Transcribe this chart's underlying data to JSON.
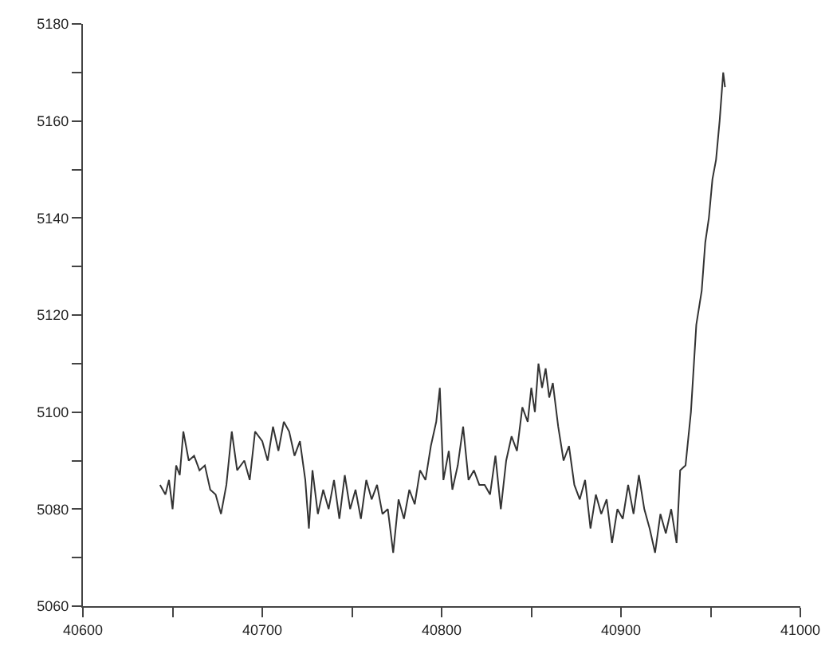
{
  "chart_data": {
    "type": "line",
    "xlim": [
      40600,
      41000
    ],
    "ylim": [
      5060,
      5180
    ],
    "xticks": [
      40600,
      {
        "value": 40650,
        "label": null
      },
      40700,
      {
        "value": 40750,
        "label": null
      },
      40800,
      {
        "value": 40850,
        "label": null
      },
      40900,
      {
        "value": 40950,
        "label": null
      },
      41000
    ],
    "yticks": [
      5060,
      {
        "value": 5070,
        "label": null
      },
      5080,
      {
        "value": 5090,
        "label": null
      },
      5100,
      {
        "value": 5110,
        "label": null
      },
      5120,
      {
        "value": 5130,
        "label": null
      },
      5140,
      {
        "value": 5150,
        "label": null
      },
      5160,
      {
        "value": 5170,
        "label": null
      },
      5180
    ],
    "marker": "none",
    "line_style": "solid",
    "x": [
      40643,
      40646,
      40648,
      40650,
      40652,
      40654,
      40656,
      40659,
      40662,
      40665,
      40668,
      40671,
      40674,
      40677,
      40680,
      40683,
      40686,
      40690,
      40693,
      40696,
      40700,
      40703,
      40706,
      40709,
      40712,
      40715,
      40718,
      40721,
      40724,
      40726,
      40728,
      40731,
      40734,
      40737,
      40740,
      40743,
      40746,
      40749,
      40752,
      40755,
      40758,
      40761,
      40764,
      40767,
      40770,
      40773,
      40776,
      40779,
      40782,
      40785,
      40788,
      40791,
      40794,
      40797,
      40799,
      40801,
      40804,
      40806,
      40809,
      40812,
      40815,
      40818,
      40821,
      40824,
      40827,
      40830,
      40833,
      40836,
      40839,
      40842,
      40845,
      40848,
      40850,
      40852,
      40854,
      40856,
      40858,
      40860,
      40862,
      40865,
      40868,
      40871,
      40874,
      40877,
      40880,
      40883,
      40886,
      40889,
      40892,
      40895,
      40898,
      40901,
      40904,
      40907,
      40910,
      40913,
      40916,
      40919,
      40922,
      40925,
      40928,
      40931,
      40933,
      40936,
      40939,
      40942,
      40945,
      40947,
      40949,
      40951,
      40953,
      40955,
      40957,
      40958
    ],
    "series": [
      {
        "color": "#333333",
        "values": [
          5085,
          5083,
          5086,
          5080,
          5089,
          5087,
          5096,
          5090,
          5091,
          5088,
          5089,
          5084,
          5083,
          5079,
          5085,
          5096,
          5088,
          5090,
          5086,
          5096,
          5094,
          5090,
          5097,
          5092,
          5098,
          5096,
          5091,
          5094,
          5086,
          5076,
          5088,
          5079,
          5084,
          5080,
          5086,
          5078,
          5087,
          5080,
          5084,
          5078,
          5086,
          5082,
          5085,
          5079,
          5080,
          5071,
          5082,
          5078,
          5084,
          5081,
          5088,
          5086,
          5093,
          5098,
          5105,
          5086,
          5092,
          5084,
          5089,
          5097,
          5086,
          5088,
          5085,
          5085,
          5083,
          5091,
          5080,
          5090,
          5095,
          5092,
          5101,
          5098,
          5105,
          5100,
          5110,
          5105,
          5109,
          5103,
          5106,
          5097,
          5090,
          5093,
          5085,
          5082,
          5086,
          5076,
          5083,
          5079,
          5082,
          5073,
          5080,
          5078,
          5085,
          5079,
          5087,
          5080,
          5076,
          5071,
          5079,
          5075,
          5080,
          5073,
          5088,
          5089,
          5100,
          5118,
          5125,
          5135,
          5140,
          5148,
          5152,
          5160,
          5170,
          5167
        ]
      }
    ]
  }
}
